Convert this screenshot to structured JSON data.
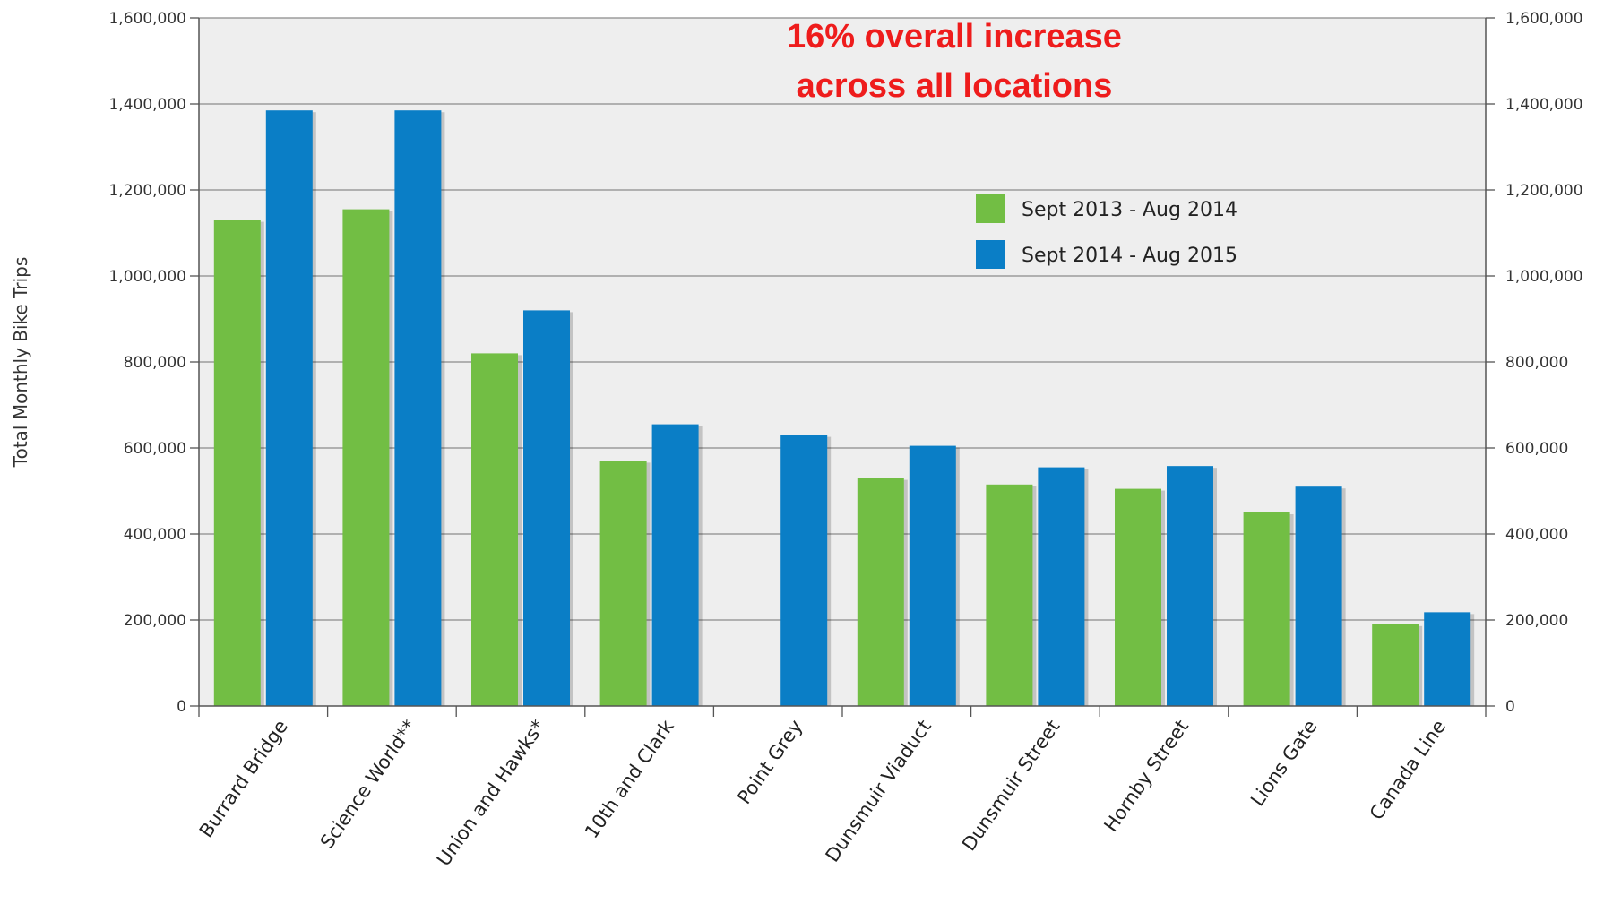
{
  "chart_data": {
    "type": "bar",
    "title": "",
    "ylabel": "Total Monthly Bike Trips",
    "xlabel": "",
    "ylim": [
      0,
      1600000
    ],
    "yticks": [
      0,
      200000,
      400000,
      600000,
      800000,
      1000000,
      1200000,
      1400000,
      1600000
    ],
    "ytick_labels": [
      "0",
      "200,000",
      "400,000",
      "600,000",
      "800,000",
      "1,000,000",
      "1,200,000",
      "1,400,000",
      "1,600,000"
    ],
    "secondary_axis": "right (same scale)",
    "grid": "horizontal",
    "legend_position": "upper-right",
    "categories": [
      "Burrard Bridge",
      "Science World**",
      "Union and Hawks*",
      "10th and Clark",
      "Point Grey",
      "Dunsmuir Viaduct",
      "Dunsmuir Street",
      "Hornby Street",
      "Lions Gate",
      "Canada Line"
    ],
    "series": [
      {
        "name": "Sept 2013 - Aug 2014",
        "color": "#72be44",
        "values": [
          1130000,
          1155000,
          820000,
          570000,
          null,
          530000,
          515000,
          505000,
          450000,
          190000
        ]
      },
      {
        "name": "Sept 2014 - Aug 2015",
        "color": "#0a7ec6",
        "values": [
          1385000,
          1385000,
          920000,
          655000,
          630000,
          605000,
          555000,
          558000,
          510000,
          218000
        ]
      }
    ],
    "annotation": {
      "line1": "16% overall increase",
      "line2": "across all locations",
      "color": "#ee1c1c"
    }
  }
}
